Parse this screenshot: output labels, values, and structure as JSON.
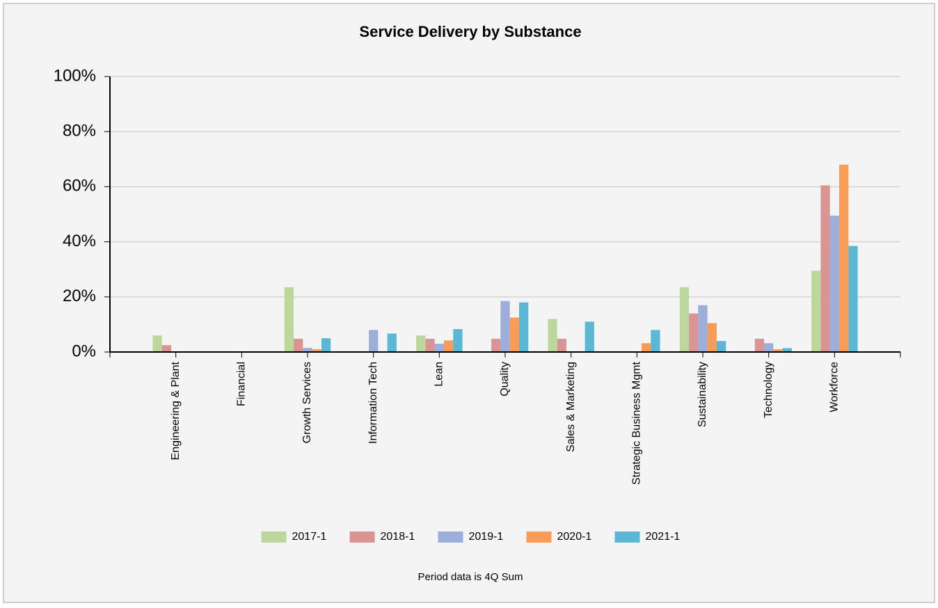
{
  "chart_data": {
    "type": "bar",
    "title": "Service Delivery by Substance",
    "footnote": "Period data is 4Q Sum",
    "categories": [
      "Engineering & Plant",
      "Financial",
      "Growth Services",
      "Information Tech",
      "Lean",
      "Quality",
      "Sales & Marketing",
      "Strategic Business Mgmt",
      "Sustainability",
      "Technology",
      "Workforce"
    ],
    "series": [
      {
        "name": "2017-1",
        "color": "#bcd79c",
        "values": [
          6,
          0,
          23.5,
          0,
          6,
          0,
          12,
          0,
          23.5,
          0,
          29.5
        ]
      },
      {
        "name": "2018-1",
        "color": "#d99594",
        "values": [
          2.5,
          0,
          4.8,
          0,
          4.8,
          4.8,
          4.8,
          0,
          14,
          4.8,
          60.5
        ]
      },
      {
        "name": "2019-1",
        "color": "#9eaedb",
        "values": [
          0,
          0,
          1.5,
          8,
          3,
          18.5,
          0,
          0,
          17,
          3.2,
          49.5
        ]
      },
      {
        "name": "2020-1",
        "color": "#f89c57",
        "values": [
          0,
          0,
          1,
          0,
          4.2,
          12.5,
          0,
          3.2,
          10.5,
          1,
          68
        ]
      },
      {
        "name": "2021-1",
        "color": "#5bb7d4",
        "values": [
          0,
          0,
          5,
          6.7,
          8.3,
          18,
          11,
          8,
          4,
          1.4,
          38.5
        ]
      }
    ],
    "ylim": [
      0,
      100
    ],
    "yticks": [
      {
        "value": 0,
        "label": "0%"
      },
      {
        "value": 20,
        "label": "20%"
      },
      {
        "value": 40,
        "label": "40%"
      },
      {
        "value": 60,
        "label": "60%"
      },
      {
        "value": 80,
        "label": "80%"
      },
      {
        "value": 100,
        "label": "100%"
      }
    ],
    "grid": true
  }
}
